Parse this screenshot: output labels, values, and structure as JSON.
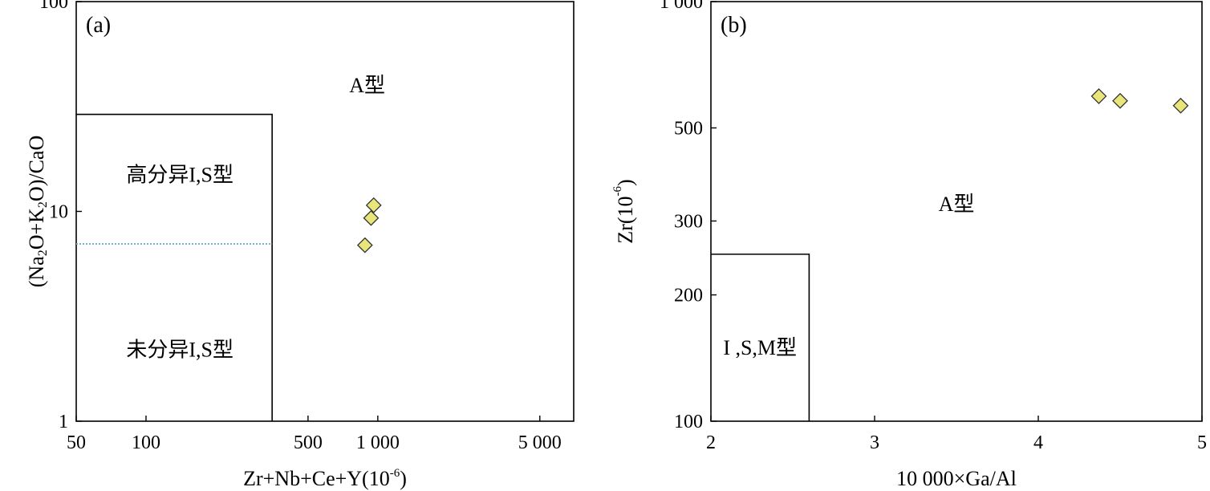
{
  "chart_data": [
    {
      "panel": "(a)",
      "type": "scatter",
      "xlabel": "Zr+Nb+Ce+Y(10",
      "xlabel_sup": "-6",
      "xlabel_close": ")",
      "ylabel": "(Na2O+K2O)/CaO",
      "ylabel_parts": [
        "(Na",
        "2",
        "O+K",
        "2",
        "O)/CaO"
      ],
      "x_scale": "log",
      "y_scale": "log",
      "xlim": [
        50,
        7000
      ],
      "ylim": [
        1,
        100
      ],
      "x_ticks": [
        {
          "value": 50,
          "label": "50"
        },
        {
          "value": 100,
          "label": "100"
        },
        {
          "value": 500,
          "label": "500"
        },
        {
          "value": 1000,
          "label": "1 000"
        },
        {
          "value": 5000,
          "label": "5 000"
        }
      ],
      "y_ticks": [
        {
          "value": 1,
          "label": "1"
        },
        {
          "value": 10,
          "label": "10"
        },
        {
          "value": 100,
          "label": "100"
        }
      ],
      "region_boundary": {
        "x_max": 350,
        "y_max": 29
      },
      "divider_line": {
        "y": 7,
        "x_from": 50,
        "x_to": 350,
        "color": "#6fb7e0",
        "style": "dotted"
      },
      "regions": [
        {
          "label": "A型",
          "x": 900,
          "y": 40
        },
        {
          "label": "高分异I,S型",
          "x": 140,
          "y": 15
        },
        {
          "label": "未分异I,S型",
          "x": 140,
          "y": 2.2
        }
      ],
      "points": [
        {
          "x": 960,
          "y": 10.7
        },
        {
          "x": 935,
          "y": 9.3
        },
        {
          "x": 880,
          "y": 6.9
        }
      ],
      "marker": {
        "shape": "diamond",
        "fill": "#e8e57a",
        "stroke": "#333333"
      }
    },
    {
      "panel": "(b)",
      "type": "scatter",
      "xlabel": "10 000×Ga/Al",
      "ylabel": "Zr(10",
      "ylabel_sup": "-6",
      "ylabel_close": ")",
      "x_scale": "linear",
      "y_scale": "log",
      "xlim": [
        2,
        5
      ],
      "ylim": [
        100,
        1000
      ],
      "x_ticks": [
        {
          "value": 2,
          "label": "2"
        },
        {
          "value": 3,
          "label": "3"
        },
        {
          "value": 4,
          "label": "4"
        },
        {
          "value": 5,
          "label": "5"
        }
      ],
      "y_ticks": [
        {
          "value": 100,
          "label": "100"
        },
        {
          "value": 200,
          "label": "200"
        },
        {
          "value": 300,
          "label": "300"
        },
        {
          "value": 500,
          "label": "500"
        },
        {
          "value": 1000,
          "label": "1 000"
        }
      ],
      "region_boundary": {
        "x_max": 2.6,
        "y_max": 250
      },
      "regions": [
        {
          "label": "A型",
          "x": 3.5,
          "y": 330
        },
        {
          "label": "I ,S,M型",
          "x": 2.3,
          "y": 150
        }
      ],
      "points": [
        {
          "x": 4.37,
          "y": 595
        },
        {
          "x": 4.5,
          "y": 580
        },
        {
          "x": 4.87,
          "y": 565
        }
      ],
      "marker": {
        "shape": "diamond",
        "fill": "#e8e57a",
        "stroke": "#333333"
      }
    }
  ]
}
